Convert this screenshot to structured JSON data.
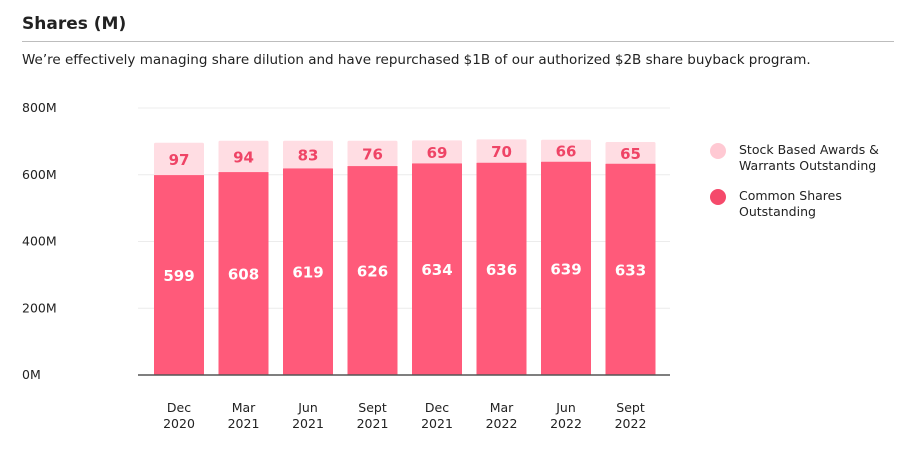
{
  "header": {
    "title": "Shares (M)",
    "subtitle": "We’re effectively managing share dilution and have repurchased $1B of our authorized $2B share buyback program."
  },
  "colors": {
    "common": "#ff5a7a",
    "awards": "#ffdde3",
    "awards_label": "#ef4466",
    "legend_awards_dot": "#ffc9d3",
    "legend_common_dot": "#f54a6b"
  },
  "chart_data": {
    "type": "bar",
    "stacked": true,
    "categories": [
      [
        "Dec",
        "2020"
      ],
      [
        "Mar",
        "2021"
      ],
      [
        "Jun",
        "2021"
      ],
      [
        "Sept",
        "2021"
      ],
      [
        "Dec",
        "2021"
      ],
      [
        "Mar",
        "2022"
      ],
      [
        "Jun",
        "2022"
      ],
      [
        "Sept",
        "2022"
      ]
    ],
    "series": [
      {
        "name": "Common Shares Outstanding",
        "values": [
          599,
          608,
          619,
          626,
          634,
          636,
          639,
          633
        ]
      },
      {
        "name": "Stock Based Awards & Warrants Outstanding",
        "values": [
          97,
          94,
          83,
          76,
          69,
          70,
          66,
          65
        ]
      }
    ],
    "y_ticks": [
      "0M",
      "200M",
      "400M",
      "600M",
      "800M"
    ],
    "ylim": [
      0,
      800
    ],
    "grid": true,
    "legend_position": "right"
  },
  "legend": {
    "items": [
      {
        "label_line1": "Stock Based Awards &",
        "label_line2": "Warrants Outstanding"
      },
      {
        "label_line1": "Common Shares",
        "label_line2": "Outstanding"
      }
    ]
  }
}
